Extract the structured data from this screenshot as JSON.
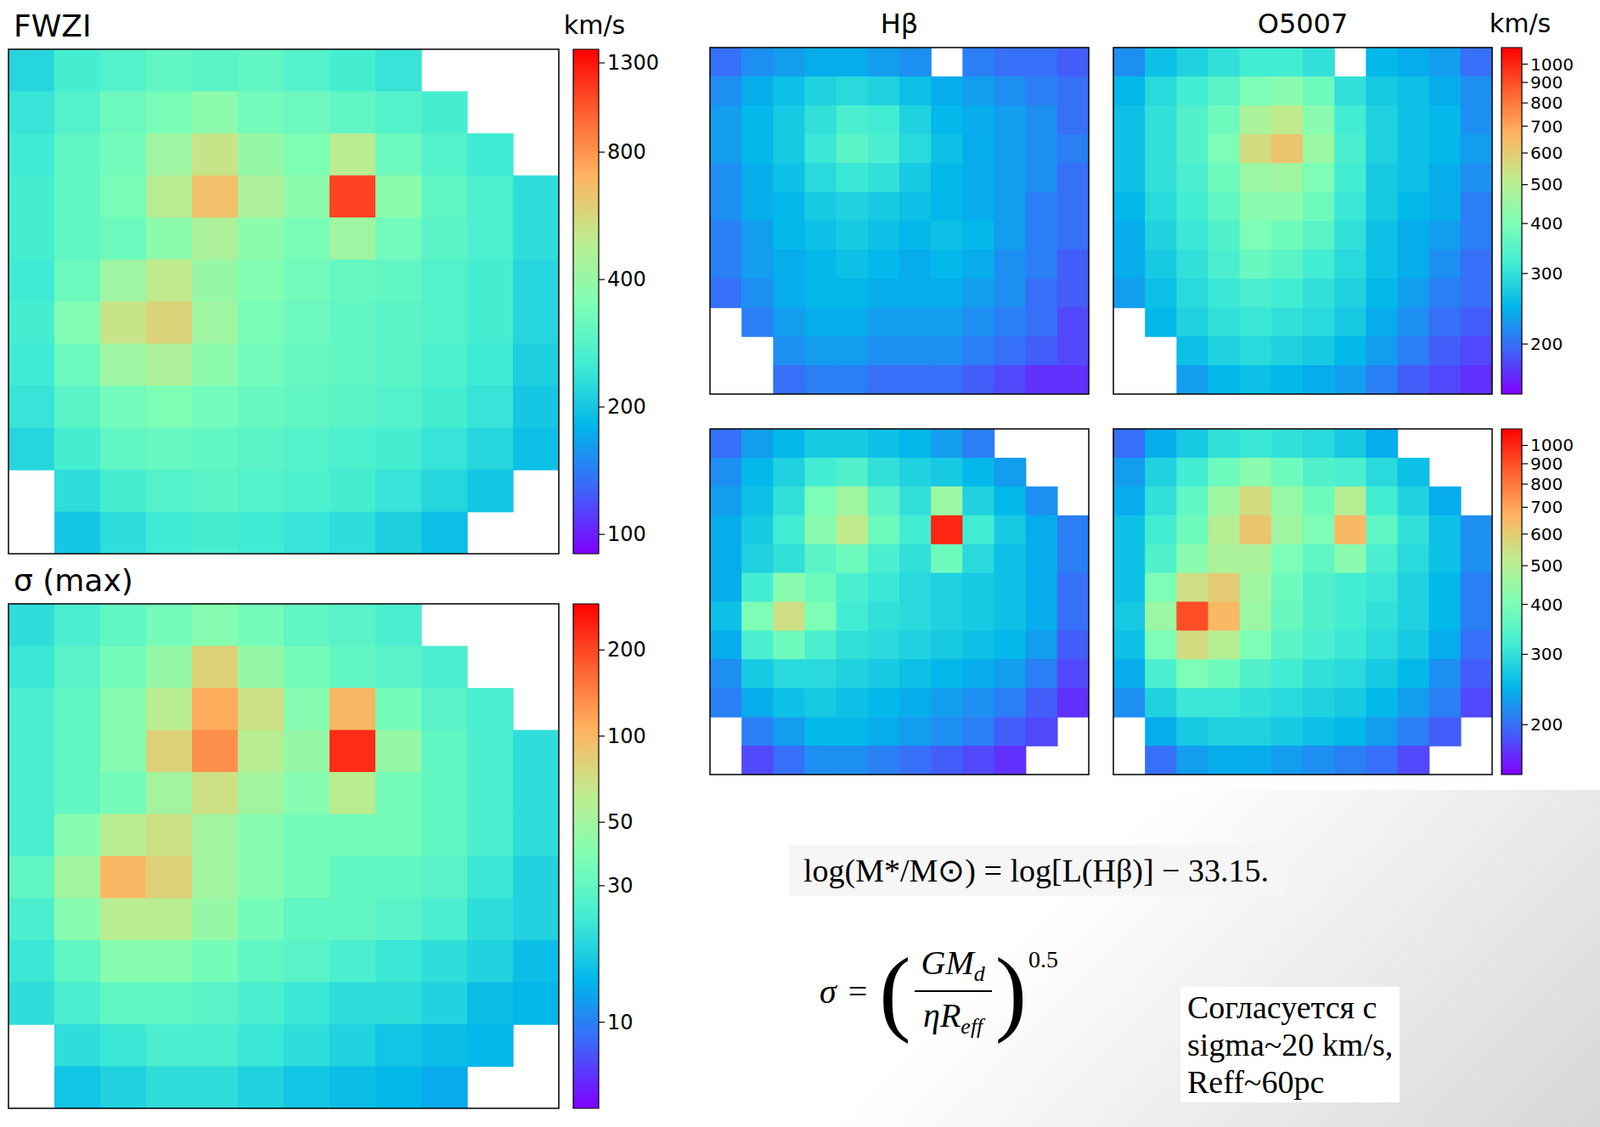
{
  "chart_data": [
    {
      "type": "heatmap",
      "title": "FWZI",
      "colorbar_label": "km/s",
      "color": "rainbow",
      "log": true,
      "tick_labels": false,
      "color_range": [
        90,
        1400
      ],
      "color_ticks": [
        100,
        200,
        400,
        800,
        1300
      ],
      "cells": [
        [
          220,
          260,
          280,
          300,
          290,
          300,
          280,
          260,
          240,
          null,
          null,
          null
        ],
        [
          240,
          280,
          320,
          340,
          380,
          330,
          320,
          300,
          280,
          260,
          null,
          null
        ],
        [
          250,
          300,
          330,
          420,
          520,
          400,
          350,
          480,
          320,
          280,
          250,
          null
        ],
        [
          260,
          300,
          340,
          480,
          650,
          450,
          380,
          1100,
          380,
          300,
          270,
          230
        ],
        [
          260,
          300,
          320,
          380,
          450,
          380,
          340,
          420,
          330,
          290,
          270,
          230
        ],
        [
          250,
          320,
          420,
          500,
          400,
          360,
          330,
          310,
          300,
          280,
          260,
          220
        ],
        [
          260,
          360,
          520,
          580,
          420,
          340,
          320,
          300,
          290,
          280,
          260,
          220
        ],
        [
          250,
          320,
          420,
          450,
          380,
          330,
          310,
          300,
          290,
          270,
          250,
          210
        ],
        [
          240,
          290,
          330,
          350,
          330,
          310,
          300,
          290,
          280,
          260,
          240,
          200
        ],
        [
          220,
          260,
          300,
          310,
          300,
          290,
          280,
          270,
          260,
          240,
          220,
          190
        ],
        [
          null,
          230,
          260,
          280,
          290,
          280,
          270,
          260,
          240,
          220,
          200,
          null
        ],
        [
          null,
          200,
          230,
          250,
          260,
          250,
          240,
          230,
          210,
          190,
          null,
          null
        ]
      ]
    },
    {
      "type": "heatmap",
      "title": "σ (max)",
      "color": "rainbow",
      "log": true,
      "tick_labels": false,
      "color_range": [
        5,
        290
      ],
      "color_ticks": [
        10,
        30,
        50,
        100,
        200
      ],
      "cells": [
        [
          20,
          25,
          30,
          35,
          40,
          35,
          30,
          28,
          25,
          null,
          null,
          null
        ],
        [
          22,
          28,
          35,
          45,
          80,
          45,
          35,
          30,
          28,
          25,
          null,
          null
        ],
        [
          25,
          30,
          40,
          60,
          110,
          70,
          40,
          100,
          35,
          28,
          25,
          null
        ],
        [
          25,
          30,
          40,
          80,
          130,
          60,
          45,
          230,
          45,
          30,
          25,
          20
        ],
        [
          25,
          30,
          35,
          50,
          70,
          50,
          40,
          60,
          35,
          30,
          25,
          20
        ],
        [
          25,
          40,
          60,
          70,
          50,
          40,
          35,
          35,
          35,
          30,
          25,
          20
        ],
        [
          30,
          50,
          100,
          80,
          50,
          40,
          35,
          30,
          30,
          28,
          22,
          18
        ],
        [
          25,
          40,
          60,
          60,
          45,
          35,
          30,
          30,
          28,
          25,
          20,
          18
        ],
        [
          22,
          30,
          40,
          40,
          35,
          30,
          28,
          25,
          22,
          20,
          18,
          15
        ],
        [
          20,
          25,
          30,
          30,
          28,
          25,
          22,
          20,
          20,
          18,
          15,
          14
        ],
        [
          null,
          20,
          22,
          25,
          25,
          22,
          20,
          18,
          16,
          15,
          14,
          null
        ],
        [
          null,
          16,
          18,
          20,
          20,
          18,
          16,
          15,
          14,
          13,
          null,
          null
        ]
      ]
    },
    {
      "type": "heatmap",
      "title": "Hβ",
      "color": "rainbow",
      "log": true,
      "tick_labels": false,
      "color_range": [
        150,
        1100
      ],
      "cells": [
        [
          200,
          220,
          230,
          240,
          240,
          230,
          220,
          null,
          210,
          200,
          200,
          190
        ],
        [
          220,
          240,
          260,
          280,
          290,
          280,
          260,
          240,
          230,
          220,
          210,
          200
        ],
        [
          230,
          250,
          270,
          300,
          330,
          320,
          280,
          250,
          240,
          230,
          220,
          200
        ],
        [
          230,
          250,
          270,
          310,
          350,
          330,
          290,
          260,
          240,
          230,
          220,
          210
        ],
        [
          220,
          240,
          260,
          290,
          310,
          300,
          270,
          250,
          240,
          230,
          220,
          200
        ],
        [
          220,
          240,
          250,
          270,
          280,
          270,
          260,
          250,
          240,
          230,
          210,
          200
        ],
        [
          210,
          230,
          250,
          260,
          270,
          260,
          250,
          260,
          250,
          230,
          210,
          200
        ],
        [
          210,
          230,
          240,
          250,
          260,
          250,
          240,
          250,
          240,
          220,
          210,
          190
        ],
        [
          200,
          220,
          240,
          250,
          250,
          240,
          240,
          240,
          230,
          220,
          200,
          190
        ],
        [
          null,
          210,
          230,
          240,
          240,
          230,
          230,
          230,
          220,
          210,
          200,
          180
        ],
        [
          null,
          null,
          220,
          230,
          230,
          220,
          220,
          220,
          210,
          200,
          190,
          180
        ],
        [
          null,
          null,
          200,
          210,
          210,
          200,
          200,
          200,
          190,
          180,
          170,
          170
        ]
      ]
    },
    {
      "type": "heatmap",
      "title": "O5007",
      "colorbar_label": "km/s",
      "color": "rainbow",
      "log": true,
      "tick_labels": false,
      "color_range": [
        150,
        1100
      ],
      "color_ticks": [
        200,
        300,
        400,
        500,
        600,
        700,
        800,
        900,
        1000
      ],
      "cells": [
        [
          220,
          260,
          280,
          300,
          320,
          320,
          300,
          null,
          250,
          240,
          230,
          200
        ],
        [
          250,
          290,
          320,
          350,
          400,
          420,
          380,
          300,
          270,
          260,
          240,
          220
        ],
        [
          260,
          300,
          340,
          380,
          480,
          520,
          420,
          320,
          280,
          260,
          250,
          220
        ],
        [
          260,
          300,
          340,
          400,
          560,
          620,
          450,
          330,
          280,
          260,
          250,
          230
        ],
        [
          260,
          300,
          330,
          380,
          450,
          460,
          400,
          320,
          270,
          260,
          240,
          220
        ],
        [
          250,
          290,
          320,
          360,
          420,
          420,
          380,
          310,
          270,
          250,
          240,
          210
        ],
        [
          240,
          280,
          310,
          340,
          400,
          380,
          350,
          300,
          260,
          240,
          230,
          210
        ],
        [
          240,
          270,
          300,
          330,
          370,
          350,
          320,
          290,
          260,
          240,
          220,
          200
        ],
        [
          230,
          260,
          290,
          310,
          330,
          320,
          300,
          280,
          250,
          230,
          210,
          200
        ],
        [
          null,
          250,
          280,
          300,
          310,
          300,
          290,
          270,
          240,
          220,
          200,
          190
        ],
        [
          null,
          null,
          260,
          280,
          290,
          280,
          270,
          250,
          230,
          210,
          190,
          180
        ],
        [
          null,
          null,
          230,
          250,
          260,
          250,
          240,
          230,
          210,
          190,
          180,
          170
        ]
      ]
    },
    {
      "type": "heatmap",
      "color": "rainbow",
      "log": true,
      "tick_labels": false,
      "color_range": [
        150,
        1100
      ],
      "cells": [
        [
          200,
          230,
          250,
          270,
          270,
          260,
          250,
          230,
          210,
          null,
          null,
          null
        ],
        [
          220,
          250,
          280,
          320,
          340,
          300,
          280,
          270,
          250,
          230,
          null,
          null
        ],
        [
          230,
          260,
          300,
          400,
          460,
          350,
          300,
          450,
          280,
          250,
          220,
          null
        ],
        [
          240,
          270,
          320,
          420,
          520,
          380,
          320,
          1000,
          320,
          270,
          240,
          210
        ],
        [
          240,
          280,
          300,
          350,
          380,
          330,
          300,
          380,
          290,
          260,
          240,
          210
        ],
        [
          240,
          320,
          420,
          380,
          330,
          310,
          290,
          280,
          270,
          260,
          240,
          200
        ],
        [
          260,
          400,
          550,
          400,
          320,
          300,
          290,
          280,
          270,
          260,
          240,
          200
        ],
        [
          240,
          330,
          380,
          330,
          300,
          290,
          280,
          270,
          260,
          250,
          230,
          190
        ],
        [
          220,
          270,
          290,
          290,
          280,
          270,
          260,
          250,
          240,
          230,
          210,
          180
        ],
        [
          210,
          240,
          260,
          270,
          260,
          250,
          240,
          230,
          220,
          210,
          190,
          170
        ],
        [
          null,
          210,
          230,
          250,
          250,
          240,
          230,
          220,
          210,
          190,
          180,
          null
        ],
        [
          null,
          180,
          200,
          220,
          220,
          210,
          200,
          190,
          180,
          170,
          null,
          null
        ]
      ]
    },
    {
      "type": "heatmap",
      "color": "rainbow",
      "log": true,
      "tick_labels": false,
      "color_range": [
        150,
        1100
      ],
      "color_ticks": [
        200,
        300,
        400,
        500,
        600,
        700,
        800,
        900,
        1000
      ],
      "cells": [
        [
          200,
          240,
          270,
          300,
          310,
          300,
          290,
          270,
          240,
          null,
          null,
          null
        ],
        [
          230,
          280,
          320,
          380,
          420,
          380,
          340,
          330,
          290,
          260,
          null,
          null
        ],
        [
          240,
          300,
          360,
          460,
          560,
          440,
          380,
          500,
          320,
          280,
          240,
          null
        ],
        [
          260,
          320,
          380,
          500,
          620,
          460,
          400,
          650,
          360,
          300,
          260,
          220
        ],
        [
          260,
          340,
          420,
          480,
          480,
          400,
          360,
          420,
          330,
          290,
          260,
          220
        ],
        [
          260,
          400,
          550,
          600,
          460,
          380,
          340,
          320,
          310,
          280,
          250,
          210
        ],
        [
          270,
          450,
          900,
          650,
          450,
          370,
          340,
          320,
          300,
          280,
          250,
          210
        ],
        [
          260,
          400,
          560,
          500,
          400,
          350,
          330,
          310,
          290,
          270,
          240,
          200
        ],
        [
          240,
          330,
          400,
          380,
          340,
          320,
          300,
          290,
          270,
          250,
          220,
          190
        ],
        [
          220,
          280,
          310,
          310,
          300,
          290,
          280,
          270,
          250,
          230,
          210,
          180
        ],
        [
          null,
          240,
          270,
          280,
          280,
          270,
          260,
          250,
          230,
          210,
          190,
          null
        ],
        [
          null,
          200,
          230,
          240,
          240,
          230,
          220,
          210,
          200,
          180,
          null,
          null
        ]
      ]
    }
  ],
  "mass_formula": "log(M*/M⊙) = log[L(Hβ)] − 33.15.",
  "sigma_formula": {
    "lhs": "σ",
    "operator": "=",
    "brackets": [
      "(",
      ")"
    ],
    "numerator": {
      "main": "GM",
      "sub": "d"
    },
    "denominator": {
      "main": "ηR",
      "sub": "eff"
    },
    "exponent": "0.5"
  },
  "note_lines": [
    "Согласуется с",
    "sigma~20 km/s,",
    "Reff~60pc"
  ]
}
